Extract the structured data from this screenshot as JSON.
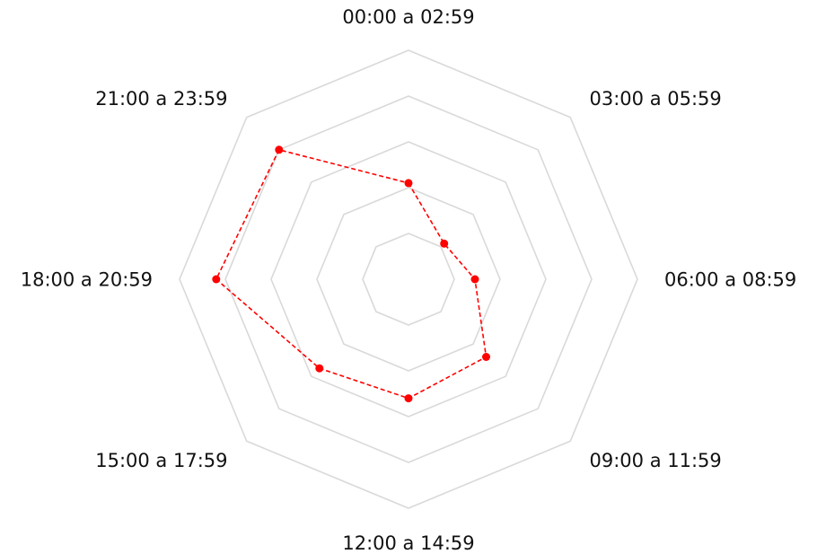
{
  "chart_data": {
    "type": "radar",
    "categories": [
      "00:00 a 02:59",
      "03:00 a 05:59",
      "06:00 a 08:59",
      "09:00 a 11:59",
      "12:00 a 14:59",
      "15:00 a 17:59",
      "18:00 a 20:59",
      "21:00 a 23:59"
    ],
    "rmax": 5,
    "gridlines": [
      1,
      2,
      3,
      4,
      5
    ],
    "grid": true,
    "series": [
      {
        "values": [
          2.1,
          1.1,
          1.45,
          2.4,
          2.6,
          2.75,
          4.2,
          4.0
        ],
        "color": "#ff0000",
        "line_style": "dashed",
        "marker": "circle"
      }
    ]
  },
  "colors": {
    "grid": "#d9d9d9",
    "text": "#111111",
    "background": "#ffffff"
  }
}
